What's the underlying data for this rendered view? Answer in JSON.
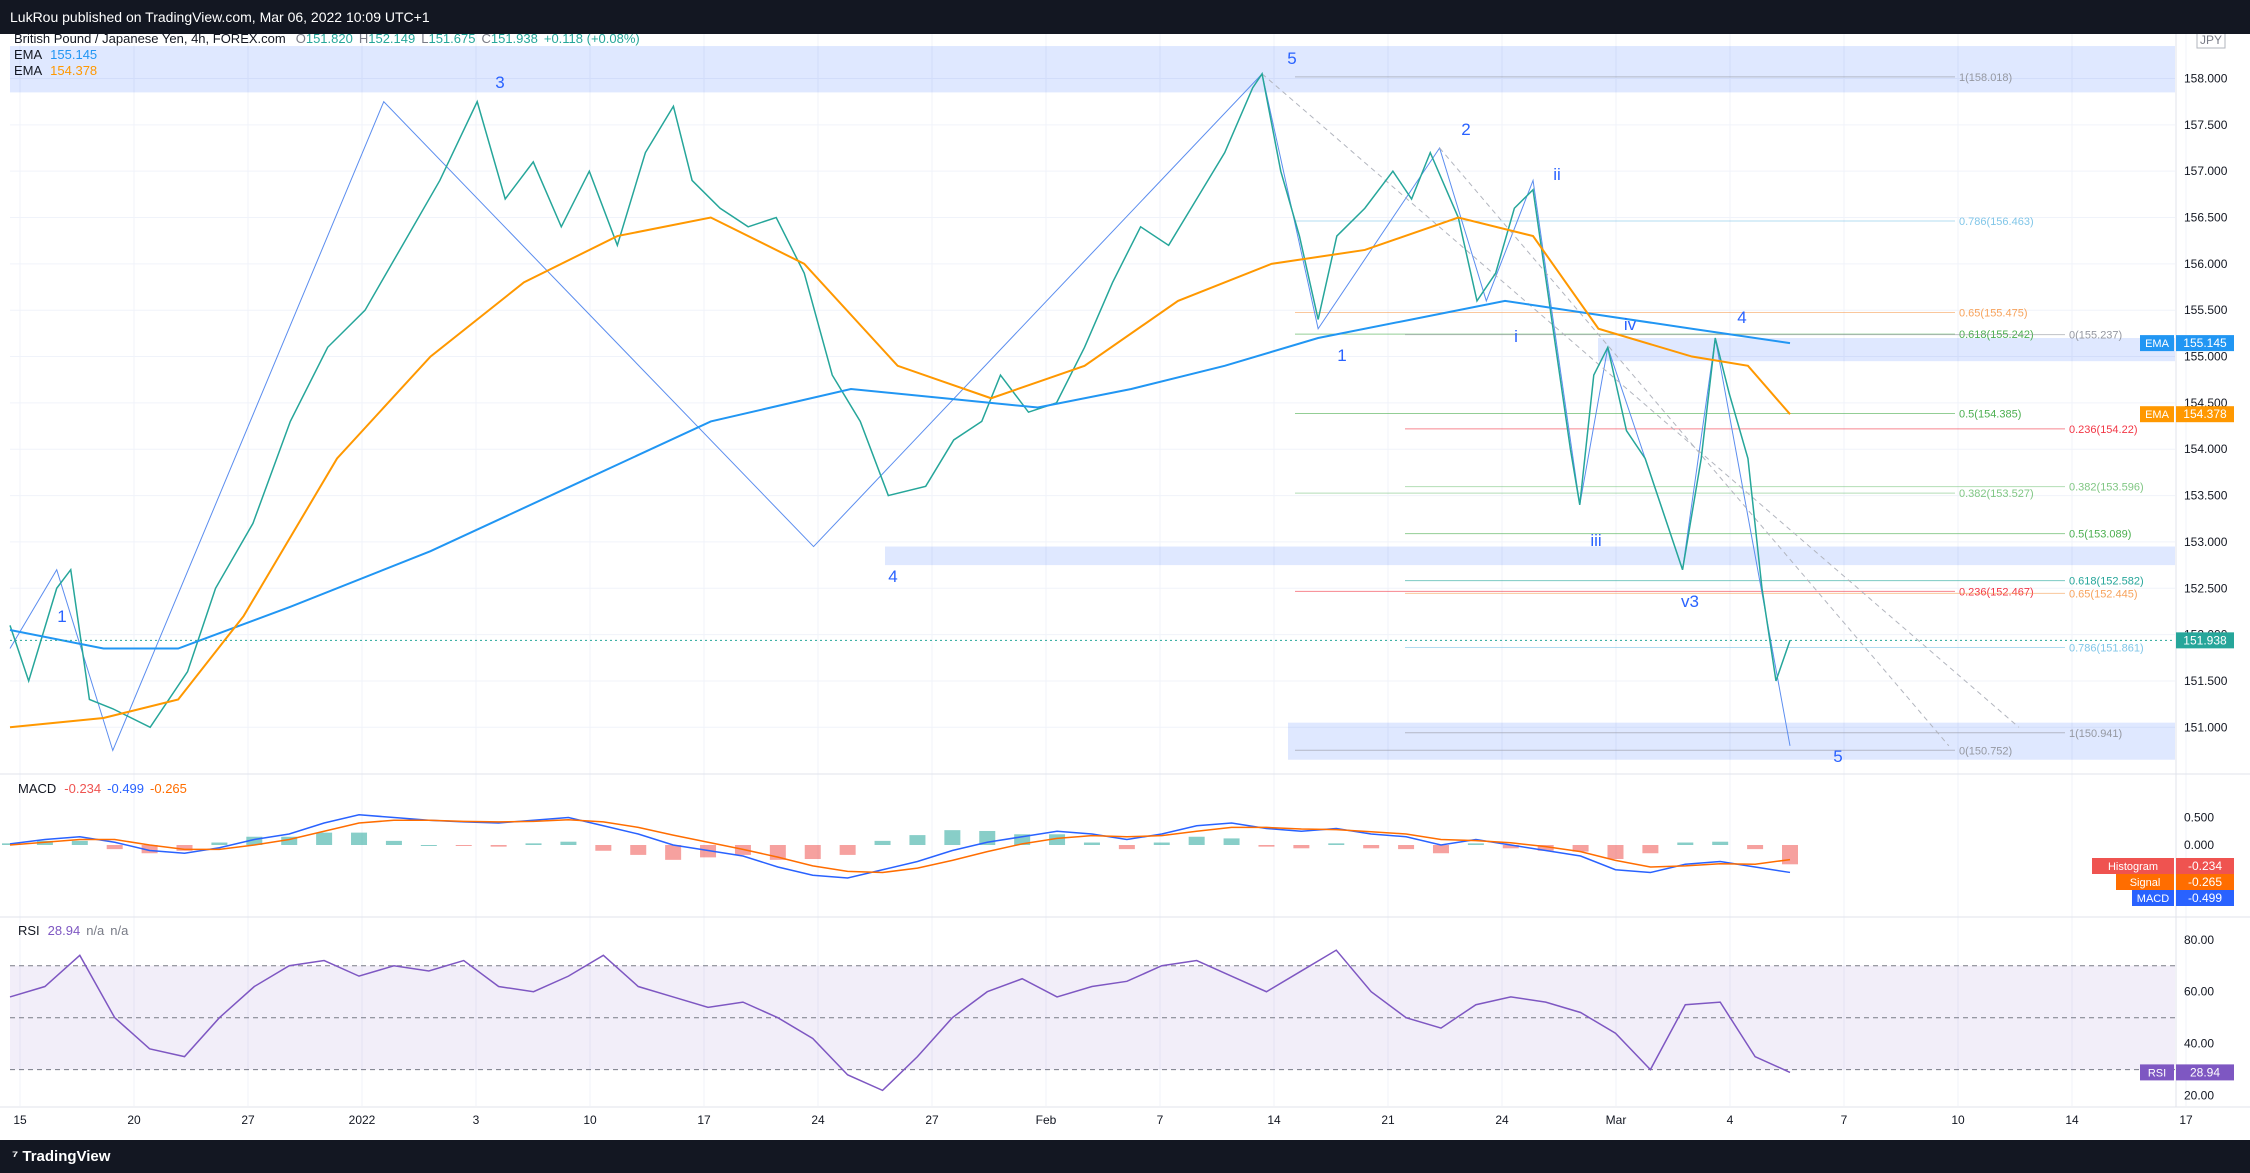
{
  "header": {
    "title": "LukRou published on TradingView.com, Mar 06, 2022 10:09 UTC+1"
  },
  "footer": {
    "brand": "TradingView"
  },
  "main_legend": {
    "symbol": "British Pound / Japanese Yen, 4h, FOREX.com",
    "ohlc": {
      "O": "151.820",
      "H": "152.149",
      "L": "151.675",
      "C": "151.938",
      "change": "+0.118 (+0.08%)"
    },
    "ema1": {
      "label": "EMA",
      "value": "155.145",
      "color": "#2196f3"
    },
    "ema2": {
      "label": "EMA",
      "value": "154.378",
      "color": "#ff9800"
    },
    "currency": "JPY"
  },
  "macd_legend": {
    "label": "MACD",
    "values": [
      "-0.234",
      "-0.499",
      "-0.265"
    ]
  },
  "rsi_legend": {
    "label": "RSI",
    "values": [
      "28.94",
      "n/a",
      "n/a"
    ]
  },
  "price_badges": [
    {
      "label": "EMA",
      "value": "155.145",
      "price": 155.145,
      "color": "#2196f3"
    },
    {
      "label": "EMA",
      "value": "154.378",
      "price": 154.378,
      "color": "#ff9800"
    },
    {
      "label": "",
      "value": "151.938",
      "price": 151.938,
      "color": "#26a69a"
    }
  ],
  "macd_badges": [
    {
      "label": "Histogram",
      "value": "-0.234",
      "color": "#ef5350"
    },
    {
      "label": "Signal",
      "value": "-0.265",
      "color": "#ff6d00"
    },
    {
      "label": "MACD",
      "value": "-0.499",
      "color": "#2962ff"
    }
  ],
  "rsi_badge": {
    "label": "RSI",
    "value": "28.94",
    "color": "#7e57c2"
  },
  "fib_labels": [
    {
      "text": "1(158.018)",
      "price": 158.018,
      "color": "#9598a1"
    },
    {
      "text": "0.786(156.463)",
      "price": 156.463,
      "color": "#81c6e8"
    },
    {
      "text": "0.65(155.475)",
      "price": 155.475,
      "color": "#f7a35c"
    },
    {
      "text": "0.618(155.242)",
      "price": 155.242,
      "color": "#4caf50"
    },
    {
      "text": "0(155.237)",
      "price": 155.237,
      "color": "#9598a1"
    },
    {
      "text": "0.5(154.385)",
      "price": 154.385,
      "color": "#4caf50"
    },
    {
      "text": "0.236(154.22)",
      "price": 154.22,
      "color": "#f23645"
    },
    {
      "text": "0.382(153.527)",
      "price": 153.527,
      "color": "#81c784"
    },
    {
      "text": "0.382(153.596)",
      "price": 153.596,
      "color": "#81c784"
    },
    {
      "text": "0.5(153.089)",
      "price": 153.089,
      "color": "#4caf50"
    },
    {
      "text": "0.618(152.582)",
      "price": 152.582,
      "color": "#26a69a"
    },
    {
      "text": "0.236(152.467)",
      "price": 152.467,
      "color": "#f23645"
    },
    {
      "text": "0.65(152.445)",
      "price": 152.445,
      "color": "#f7a35c"
    },
    {
      "text": "0.786(151.861)",
      "price": 151.861,
      "color": "#81c6e8"
    },
    {
      "text": "1(150.941)",
      "price": 150.941,
      "color": "#9598a1"
    },
    {
      "text": "0(150.752)",
      "price": 150.752,
      "color": "#9598a1"
    }
  ],
  "wave_labels": [
    {
      "text": "1",
      "color": "#2962ff"
    },
    {
      "text": "3",
      "color": "#2962ff"
    },
    {
      "text": "4",
      "color": "#2962ff"
    },
    {
      "text": "5",
      "color": "#2962ff"
    },
    {
      "text": "1",
      "color": "#2962ff"
    },
    {
      "text": "2",
      "color": "#2962ff"
    },
    {
      "text": "i",
      "color": "#2962ff"
    },
    {
      "text": "ii",
      "color": "#2962ff"
    },
    {
      "text": "iii",
      "color": "#2962ff"
    },
    {
      "text": "iv",
      "color": "#2962ff"
    },
    {
      "text": "v3",
      "color": "#2962ff"
    },
    {
      "text": "4",
      "color": "#2962ff"
    },
    {
      "text": "5",
      "color": "#2962ff"
    }
  ],
  "chart_data": {
    "type": "line",
    "title": "British Pound / Japanese Yen, 4h, FOREX.com",
    "price_axis": {
      "ticks": [
        "158.000",
        "157.500",
        "157.000",
        "156.500",
        "156.000",
        "155.500",
        "155.000",
        "154.500",
        "154.000",
        "153.500",
        "153.000",
        "152.500",
        "152.000",
        "151.500",
        "151.000"
      ],
      "range": [
        150.55,
        158.48
      ]
    },
    "time_axis": {
      "ticks": [
        "15",
        "20",
        "27",
        "2022",
        "3",
        "10",
        "17",
        "24",
        "27",
        "Feb",
        "7",
        "14",
        "21",
        "24",
        "Mar",
        "4",
        "7",
        "10",
        "14",
        "17"
      ]
    },
    "macd_axis": {
      "ticks": [
        "0.500",
        "0.000"
      ]
    },
    "rsi_axis": {
      "ticks": [
        "80.00",
        "60.00",
        "40.00",
        "20.00"
      ],
      "range": [
        16,
        88
      ],
      "band": [
        30,
        70
      ],
      "mid": 50
    },
    "price_series": [
      {
        "bar": 0,
        "price": 152.1
      },
      {
        "bar": 4,
        "price": 151.5
      },
      {
        "bar": 10,
        "price": 152.5
      },
      {
        "bar": 13,
        "price": 152.7
      },
      {
        "bar": 17,
        "price": 151.3
      },
      {
        "bar": 22,
        "price": 151.2
      },
      {
        "bar": 30,
        "price": 151.0
      },
      {
        "bar": 38,
        "price": 151.6
      },
      {
        "bar": 44,
        "price": 152.5
      },
      {
        "bar": 52,
        "price": 153.2
      },
      {
        "bar": 60,
        "price": 154.3
      },
      {
        "bar": 68,
        "price": 155.1
      },
      {
        "bar": 76,
        "price": 155.5
      },
      {
        "bar": 84,
        "price": 156.2
      },
      {
        "bar": 92,
        "price": 156.9
      },
      {
        "bar": 100,
        "price": 157.75
      },
      {
        "bar": 106,
        "price": 156.7
      },
      {
        "bar": 112,
        "price": 157.1
      },
      {
        "bar": 118,
        "price": 156.4
      },
      {
        "bar": 124,
        "price": 157.0
      },
      {
        "bar": 130,
        "price": 156.2
      },
      {
        "bar": 136,
        "price": 157.2
      },
      {
        "bar": 142,
        "price": 157.7
      },
      {
        "bar": 146,
        "price": 156.9
      },
      {
        "bar": 152,
        "price": 156.6
      },
      {
        "bar": 158,
        "price": 156.4
      },
      {
        "bar": 164,
        "price": 156.5
      },
      {
        "bar": 170,
        "price": 155.9
      },
      {
        "bar": 176,
        "price": 154.8
      },
      {
        "bar": 182,
        "price": 154.3
      },
      {
        "bar": 188,
        "price": 153.5
      },
      {
        "bar": 196,
        "price": 153.6
      },
      {
        "bar": 202,
        "price": 154.1
      },
      {
        "bar": 208,
        "price": 154.3
      },
      {
        "bar": 212,
        "price": 154.8
      },
      {
        "bar": 218,
        "price": 154.4
      },
      {
        "bar": 224,
        "price": 154.5
      },
      {
        "bar": 230,
        "price": 155.1
      },
      {
        "bar": 236,
        "price": 155.8
      },
      {
        "bar": 242,
        "price": 156.4
      },
      {
        "bar": 248,
        "price": 156.2
      },
      {
        "bar": 254,
        "price": 156.7
      },
      {
        "bar": 260,
        "price": 157.2
      },
      {
        "bar": 266,
        "price": 157.9
      },
      {
        "bar": 268,
        "price": 158.05
      },
      {
        "bar": 272,
        "price": 157.0
      },
      {
        "bar": 276,
        "price": 156.3
      },
      {
        "bar": 280,
        "price": 155.4
      },
      {
        "bar": 284,
        "price": 156.3
      },
      {
        "bar": 290,
        "price": 156.6
      },
      {
        "bar": 296,
        "price": 157.0
      },
      {
        "bar": 300,
        "price": 156.7
      },
      {
        "bar": 304,
        "price": 157.2
      },
      {
        "bar": 310,
        "price": 156.5
      },
      {
        "bar": 314,
        "price": 155.6
      },
      {
        "bar": 318,
        "price": 155.9
      },
      {
        "bar": 322,
        "price": 156.6
      },
      {
        "bar": 326,
        "price": 156.8
      },
      {
        "bar": 330,
        "price": 155.4
      },
      {
        "bar": 334,
        "price": 154.0
      },
      {
        "bar": 336,
        "price": 153.4
      },
      {
        "bar": 339,
        "price": 154.8
      },
      {
        "bar": 342,
        "price": 155.1
      },
      {
        "bar": 346,
        "price": 154.2
      },
      {
        "bar": 350,
        "price": 153.9
      },
      {
        "bar": 354,
        "price": 153.3
      },
      {
        "bar": 358,
        "price": 152.7
      },
      {
        "bar": 362,
        "price": 153.9
      },
      {
        "bar": 365,
        "price": 155.2
      },
      {
        "bar": 368,
        "price": 154.6
      },
      {
        "bar": 372,
        "price": 153.9
      },
      {
        "bar": 375,
        "price": 152.5
      },
      {
        "bar": 378,
        "price": 151.5
      },
      {
        "bar": 381,
        "price": 151.938
      }
    ],
    "ema_slow": [
      {
        "bar": 0,
        "price": 152.05
      },
      {
        "bar": 20,
        "price": 151.85
      },
      {
        "bar": 36,
        "price": 151.85
      },
      {
        "bar": 60,
        "price": 152.3
      },
      {
        "bar": 90,
        "price": 152.9
      },
      {
        "bar": 120,
        "price": 153.6
      },
      {
        "bar": 150,
        "price": 154.3
      },
      {
        "bar": 180,
        "price": 154.65
      },
      {
        "bar": 200,
        "price": 154.55
      },
      {
        "bar": 220,
        "price": 154.45
      },
      {
        "bar": 240,
        "price": 154.65
      },
      {
        "bar": 260,
        "price": 154.9
      },
      {
        "bar": 280,
        "price": 155.2
      },
      {
        "bar": 300,
        "price": 155.4
      },
      {
        "bar": 320,
        "price": 155.6
      },
      {
        "bar": 340,
        "price": 155.45
      },
      {
        "bar": 360,
        "price": 155.3
      },
      {
        "bar": 381,
        "price": 155.145
      }
    ],
    "ema_fast": [
      {
        "bar": 0,
        "price": 151.0
      },
      {
        "bar": 20,
        "price": 151.1
      },
      {
        "bar": 36,
        "price": 151.3
      },
      {
        "bar": 50,
        "price": 152.2
      },
      {
        "bar": 70,
        "price": 153.9
      },
      {
        "bar": 90,
        "price": 155.0
      },
      {
        "bar": 110,
        "price": 155.8
      },
      {
        "bar": 130,
        "price": 156.3
      },
      {
        "bar": 150,
        "price": 156.5
      },
      {
        "bar": 170,
        "price": 156.0
      },
      {
        "bar": 190,
        "price": 154.9
      },
      {
        "bar": 210,
        "price": 154.55
      },
      {
        "bar": 230,
        "price": 154.9
      },
      {
        "bar": 250,
        "price": 155.6
      },
      {
        "bar": 270,
        "price": 156.0
      },
      {
        "bar": 290,
        "price": 156.15
      },
      {
        "bar": 310,
        "price": 156.5
      },
      {
        "bar": 326,
        "price": 156.3
      },
      {
        "bar": 340,
        "price": 155.3
      },
      {
        "bar": 360,
        "price": 155.0
      },
      {
        "bar": 372,
        "price": 154.9
      },
      {
        "bar": 381,
        "price": 154.378
      }
    ],
    "macd_series": [
      0.02,
      0.1,
      0.15,
      0.05,
      -0.1,
      -0.15,
      -0.05,
      0.1,
      0.2,
      0.4,
      0.55,
      0.5,
      0.45,
      0.42,
      0.4,
      0.45,
      0.5,
      0.35,
      0.2,
      0.0,
      -0.1,
      -0.2,
      -0.4,
      -0.55,
      -0.6,
      -0.45,
      -0.3,
      -0.1,
      0.05,
      0.15,
      0.25,
      0.2,
      0.1,
      0.2,
      0.35,
      0.4,
      0.3,
      0.25,
      0.3,
      0.2,
      0.15,
      0.0,
      0.1,
      0.0,
      -0.1,
      -0.2,
      -0.45,
      -0.5,
      -0.35,
      -0.3,
      -0.4,
      -0.499
    ],
    "macd_signal": [
      0.0,
      0.05,
      0.1,
      0.1,
      0.0,
      -0.08,
      -0.08,
      0.0,
      0.1,
      0.25,
      0.4,
      0.45,
      0.45,
      0.43,
      0.42,
      0.43,
      0.46,
      0.42,
      0.32,
      0.18,
      0.05,
      -0.08,
      -0.22,
      -0.38,
      -0.48,
      -0.5,
      -0.42,
      -0.28,
      -0.12,
      0.02,
      0.12,
      0.17,
      0.15,
      0.17,
      0.25,
      0.32,
      0.32,
      0.29,
      0.28,
      0.24,
      0.2,
      0.1,
      0.08,
      0.04,
      -0.03,
      -0.12,
      -0.28,
      -0.4,
      -0.38,
      -0.34,
      -0.35,
      -0.265
    ],
    "rsi_series": [
      58,
      62,
      74,
      50,
      38,
      35,
      50,
      62,
      70,
      72,
      66,
      70,
      68,
      72,
      62,
      60,
      66,
      74,
      62,
      58,
      54,
      56,
      50,
      42,
      28,
      22,
      35,
      50,
      60,
      65,
      58,
      62,
      64,
      70,
      72,
      66,
      60,
      68,
      76,
      60,
      50,
      46,
      55,
      58,
      56,
      52,
      44,
      30,
      55,
      56,
      35,
      28.94
    ]
  }
}
